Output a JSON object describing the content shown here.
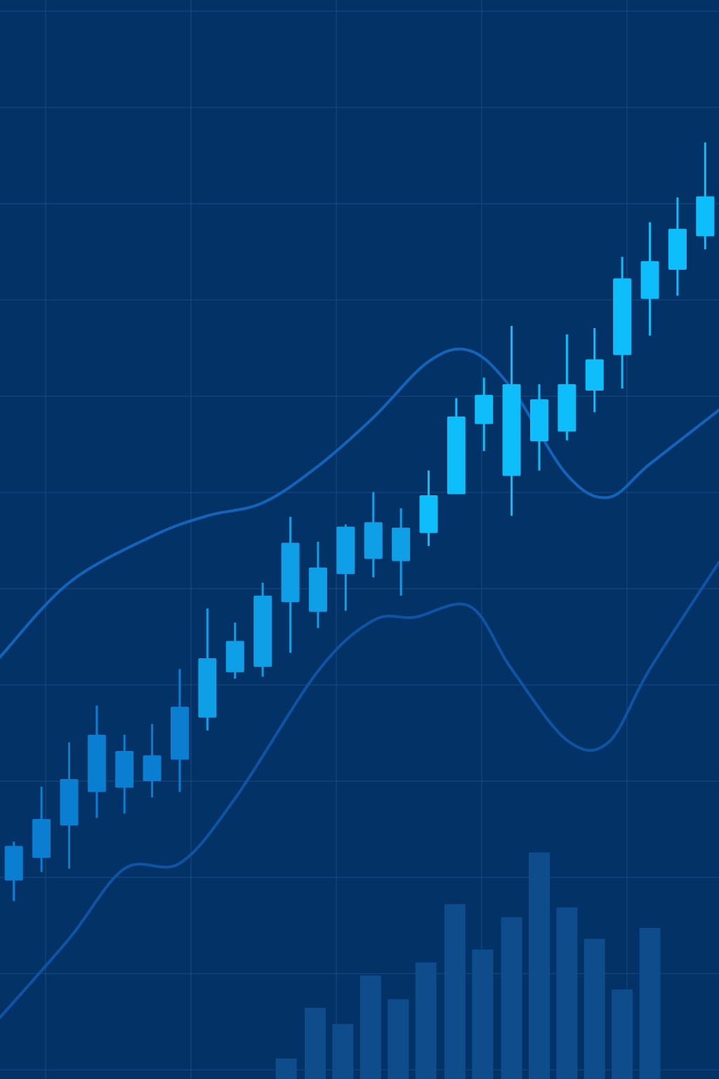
{
  "chart_data": {
    "type": "candlestick",
    "title": "",
    "xlabel": "",
    "ylabel": "",
    "grid": true,
    "legend": "none",
    "x": [
      1,
      2,
      3,
      4,
      5,
      6,
      7,
      8,
      9,
      10,
      11,
      12,
      13,
      14,
      15,
      16,
      17,
      18,
      19,
      20,
      21,
      22,
      23,
      24,
      25,
      26
    ],
    "xlim": [
      0.5,
      26.5
    ],
    "ylim": [
      0,
      100
    ],
    "candles": [
      {
        "x": 1,
        "open": 18.4,
        "high": 22.0,
        "low": 16.5,
        "close": 21.6
      },
      {
        "x": 2,
        "open": 20.5,
        "high": 27.1,
        "low": 19.2,
        "close": 24.1
      },
      {
        "x": 3,
        "open": 23.5,
        "high": 31.2,
        "low": 19.5,
        "close": 27.8
      },
      {
        "x": 4,
        "open": 26.6,
        "high": 34.6,
        "low": 24.2,
        "close": 31.9
      },
      {
        "x": 5,
        "open": 27.0,
        "high": 31.9,
        "low": 24.6,
        "close": 30.4
      },
      {
        "x": 6,
        "open": 27.6,
        "high": 32.9,
        "low": 26.1,
        "close": 30.0
      },
      {
        "x": 7,
        "open": 29.6,
        "high": 38.0,
        "low": 26.6,
        "close": 34.5
      },
      {
        "x": 8,
        "open": 33.5,
        "high": 43.6,
        "low": 32.3,
        "close": 39.0
      },
      {
        "x": 9,
        "open": 37.7,
        "high": 42.3,
        "low": 37.1,
        "close": 40.6
      },
      {
        "x": 10,
        "open": 38.2,
        "high": 46.0,
        "low": 37.3,
        "close": 44.8
      },
      {
        "x": 11,
        "open": 44.2,
        "high": 52.1,
        "low": 39.5,
        "close": 49.7
      },
      {
        "x": 12,
        "open": 43.3,
        "high": 49.8,
        "low": 41.8,
        "close": 47.4
      },
      {
        "x": 13,
        "open": 46.8,
        "high": 51.4,
        "low": 43.4,
        "close": 51.2
      },
      {
        "x": 14,
        "open": 48.2,
        "high": 54.4,
        "low": 46.5,
        "close": 51.6
      },
      {
        "x": 15,
        "open": 48.0,
        "high": 52.9,
        "low": 44.8,
        "close": 51.1
      },
      {
        "x": 16,
        "open": 50.6,
        "high": 56.4,
        "low": 49.4,
        "close": 54.1
      },
      {
        "x": 17,
        "open": 54.2,
        "high": 63.1,
        "low": 54.2,
        "close": 61.4
      },
      {
        "x": 18,
        "open": 60.7,
        "high": 65.0,
        "low": 58.2,
        "close": 63.4
      },
      {
        "x": 19,
        "open": 55.9,
        "high": 69.8,
        "low": 52.2,
        "close": 64.4
      },
      {
        "x": 20,
        "open": 59.1,
        "high": 64.4,
        "low": 56.4,
        "close": 63.0
      },
      {
        "x": 21,
        "open": 60.0,
        "high": 69.0,
        "low": 59.2,
        "close": 64.4
      },
      {
        "x": 22,
        "open": 63.8,
        "high": 69.6,
        "low": 61.8,
        "close": 66.7
      },
      {
        "x": 23,
        "open": 67.1,
        "high": 76.2,
        "low": 64.0,
        "close": 74.2
      },
      {
        "x": 24,
        "open": 72.3,
        "high": 79.4,
        "low": 68.9,
        "close": 75.8
      },
      {
        "x": 25,
        "open": 75.0,
        "high": 81.7,
        "low": 72.6,
        "close": 78.8
      },
      {
        "x": 26,
        "open": 78.1,
        "high": 86.8,
        "low": 76.9,
        "close": 81.8
      }
    ],
    "overlay_lines": [
      {
        "id": "upper-band",
        "points": [
          [
            0.5,
            39.1
          ],
          [
            3,
            46.0
          ],
          [
            6,
            50.3
          ],
          [
            8,
            52.2
          ],
          [
            10,
            53.4
          ],
          [
            12,
            56.8
          ],
          [
            14,
            61.3
          ],
          [
            16,
            66.5
          ],
          [
            17.5,
            67.5
          ],
          [
            19,
            64.0
          ],
          [
            21,
            56.0
          ],
          [
            22.5,
            53.9
          ],
          [
            24,
            57.0
          ],
          [
            26.5,
            62.0
          ]
        ]
      },
      {
        "id": "lower-band",
        "points": [
          [
            0.5,
            5.7
          ],
          [
            3,
            13.0
          ],
          [
            5,
            19.5
          ],
          [
            7,
            20.0
          ],
          [
            9,
            26.0
          ],
          [
            12,
            37.8
          ],
          [
            14,
            42.5
          ],
          [
            15.5,
            42.8
          ],
          [
            17.5,
            43.8
          ],
          [
            19,
            38.0
          ],
          [
            21,
            31.4
          ],
          [
            22.5,
            31.2
          ],
          [
            24,
            38.0
          ],
          [
            26.5,
            47.9
          ]
        ]
      }
    ],
    "volume_bars": [
      {
        "x": 10.85,
        "value": 1.9
      },
      {
        "x": 11.9,
        "value": 6.6
      },
      {
        "x": 12.9,
        "value": 5.1
      },
      {
        "x": 13.9,
        "value": 9.6
      },
      {
        "x": 14.9,
        "value": 7.4
      },
      {
        "x": 15.9,
        "value": 10.8
      },
      {
        "x": 16.95,
        "value": 16.2
      },
      {
        "x": 17.95,
        "value": 12.0
      },
      {
        "x": 19.0,
        "value": 15.0
      },
      {
        "x": 20.0,
        "value": 21.0
      },
      {
        "x": 21.0,
        "value": 15.9
      },
      {
        "x": 22.0,
        "value": 13.0
      },
      {
        "x": 23.0,
        "value": 8.3
      },
      {
        "x": 24.0,
        "value": 14.0
      }
    ],
    "colors": {
      "background": "#033366",
      "grid": "#1A4A80",
      "candle_light": "#0DBEFB",
      "candle_mid": "#0E9FE7",
      "candle_dark": "#0A7FD2",
      "band_upper": "#1364B8",
      "band_lower": "#0F54A3",
      "volume": "#0E4C8C"
    }
  }
}
